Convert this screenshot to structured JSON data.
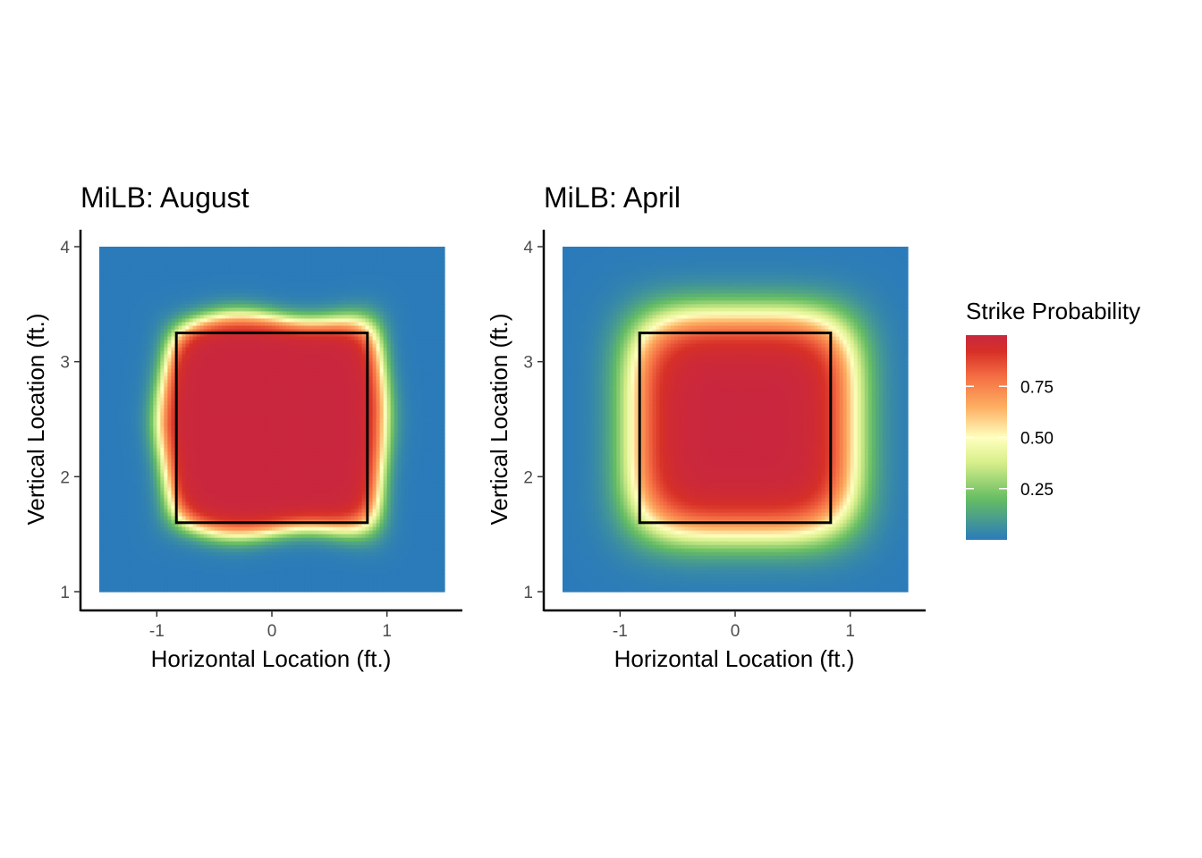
{
  "chart_data": [
    {
      "type": "heatmap",
      "title": "MiLB: August",
      "xlabel": "Horizontal Location (ft.)",
      "ylabel": "Vertical Location (ft.)",
      "xlim": [
        -1.5,
        1.5
      ],
      "ylim": [
        1,
        4
      ],
      "x_ticks": [
        "-1",
        "0",
        "1"
      ],
      "y_ticks": [
        "1",
        "2",
        "3",
        "4"
      ],
      "strike_zone": {
        "x": [
          -0.83,
          0.83
        ],
        "y": [
          1.6,
          3.25
        ]
      },
      "surface": {
        "center_x": 0.0,
        "center_y": 2.45,
        "half_width": 0.95,
        "half_height": 0.93,
        "sharpness": 0.055,
        "shape_power": 6,
        "wobble": true
      },
      "grid": false
    },
    {
      "type": "heatmap",
      "title": "MiLB: April",
      "xlabel": "Horizontal Location (ft.)",
      "ylabel": "Vertical Location (ft.)",
      "xlim": [
        -1.5,
        1.5
      ],
      "ylim": [
        1,
        4
      ],
      "x_ticks": [
        "-1",
        "0",
        "1"
      ],
      "y_ticks": [
        "1",
        "2",
        "3",
        "4"
      ],
      "strike_zone": {
        "x": [
          -0.83,
          0.83
        ],
        "y": [
          1.6,
          3.25
        ]
      },
      "surface": {
        "center_x": 0.07,
        "center_y": 2.45,
        "half_width": 0.97,
        "half_height": 0.96,
        "sharpness": 0.11,
        "shape_power": 4,
        "wobble": false
      },
      "grid": false
    }
  ],
  "legend": {
    "title": "Strike Probability",
    "labels": [
      "0.75",
      "0.50",
      "0.25"
    ],
    "label_values": [
      0.75,
      0.5,
      0.25
    ],
    "range": [
      0,
      1
    ],
    "colors": [
      "#2b7bba",
      "#66bd63",
      "#d9ef8b",
      "#ffffbf",
      "#fdae61",
      "#f46d43",
      "#d73027",
      "#c9273e"
    ]
  }
}
